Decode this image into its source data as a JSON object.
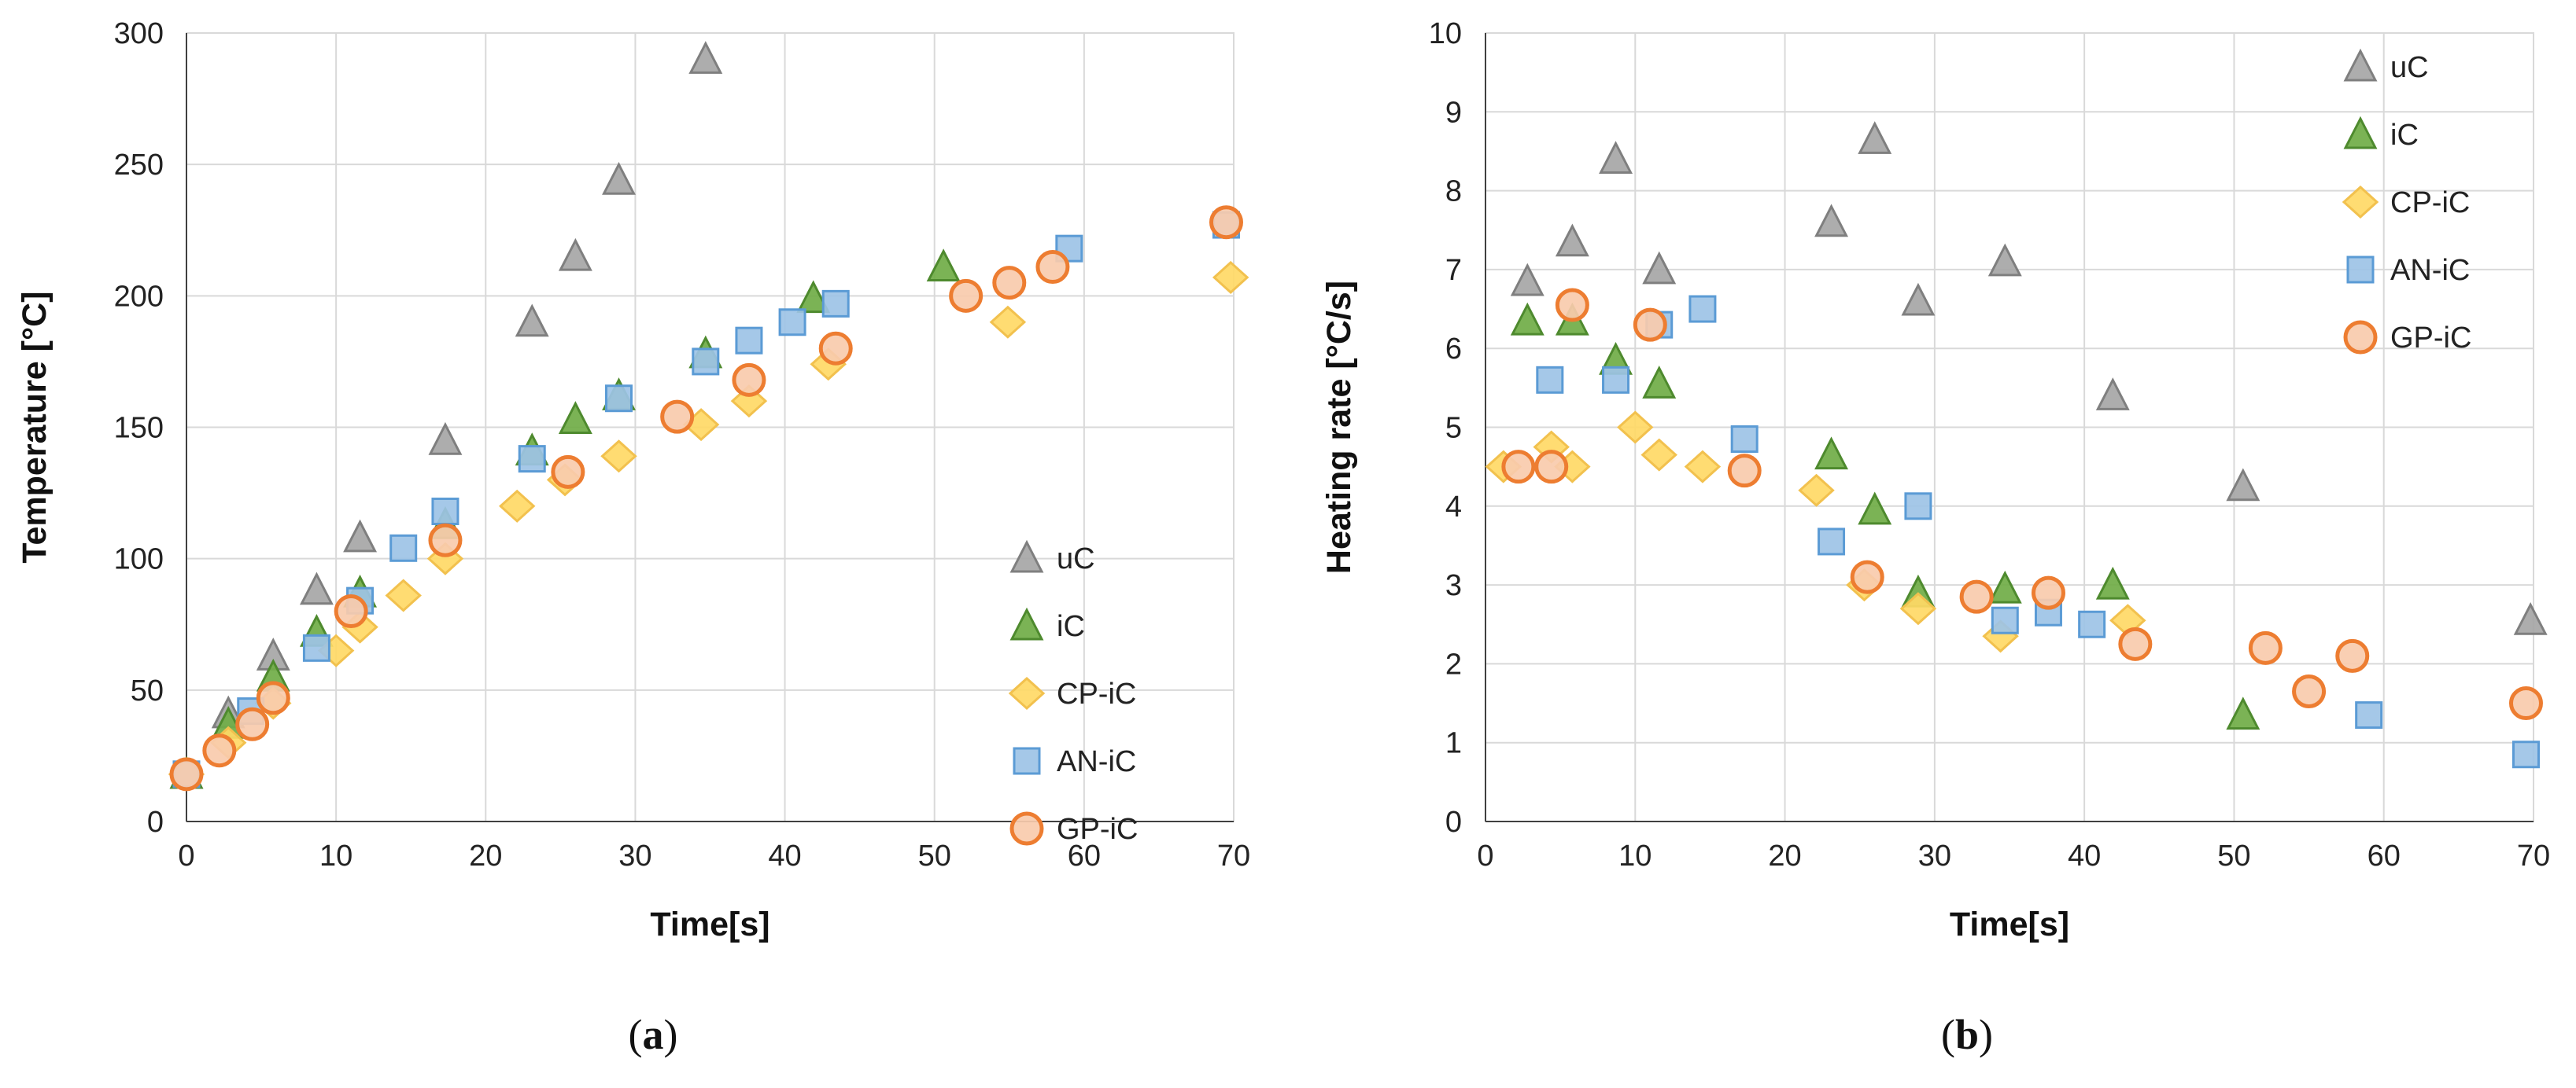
{
  "chart_data": [
    {
      "type": "scatter",
      "panel": "a",
      "caption_letter": "a",
      "xlabel": "Time[s]",
      "ylabel": "Temperature [°C]",
      "xlim": [
        0,
        70
      ],
      "ylim": [
        0,
        300
      ],
      "xticks": [
        0,
        10,
        20,
        30,
        40,
        50,
        60,
        70
      ],
      "yticks": [
        0,
        50,
        100,
        150,
        200,
        250,
        300
      ],
      "grid": true,
      "legend_position": "bottom-right",
      "series": [
        {
          "name": "uC",
          "marker": "triangle",
          "fill": "#a6a6a6",
          "stroke": "#7f7f7f",
          "x": [
            0,
            2.8,
            5.8,
            8.7,
            11.6,
            17.3,
            23.1,
            26,
            28.9,
            34.7
          ],
          "y": [
            18,
            41,
            63,
            88,
            108,
            145,
            190,
            215,
            244,
            290
          ]
        },
        {
          "name": "iC",
          "marker": "triangle",
          "fill": "#70ad47",
          "stroke": "#4e8a2e",
          "x": [
            0,
            2.8,
            5.8,
            8.7,
            11.6,
            17.3,
            23.1,
            26,
            28.9,
            34.7,
            41.9,
            50.6
          ],
          "y": [
            18,
            37,
            55,
            72,
            87,
            113,
            141,
            153,
            162,
            178,
            199,
            211
          ]
        },
        {
          "name": "CP-iC",
          "marker": "diamond",
          "fill": "#ffd966",
          "stroke": "#f2c14e",
          "x": [
            0,
            2.8,
            5.8,
            10,
            11.6,
            14.5,
            17.3,
            22.1,
            25.3,
            28.9,
            34.4,
            37.6,
            42.9,
            54.9,
            69.8
          ],
          "y": [
            18,
            30,
            45,
            65,
            74,
            86,
            100,
            120,
            130,
            139,
            151,
            160,
            174,
            190,
            207
          ]
        },
        {
          "name": "AN-iC",
          "marker": "square",
          "fill": "#9dc3e6",
          "stroke": "#5b9bd5",
          "x": [
            0,
            4.3,
            8.7,
            11.6,
            14.5,
            17.3,
            23.1,
            28.9,
            34.7,
            37.6,
            40.5,
            43.4,
            59,
            69.5
          ],
          "y": [
            18,
            42,
            66,
            84,
            104,
            118,
            138,
            161,
            175,
            183,
            190,
            197,
            218,
            227
          ]
        },
        {
          "name": "GP-iC",
          "marker": "circle",
          "fill": "#f8cbad",
          "stroke": "#ed7d31",
          "x": [
            0,
            2.2,
            4.4,
            5.8,
            11,
            17.3,
            25.5,
            32.8,
            37.6,
            43.4,
            52.1,
            55,
            57.9,
            69.5
          ],
          "y": [
            18,
            27,
            37,
            47,
            80,
            107,
            133,
            154,
            168,
            180,
            200,
            205,
            211,
            228
          ]
        }
      ]
    },
    {
      "type": "scatter",
      "panel": "b",
      "caption_letter": "b",
      "xlabel": "Time[s]",
      "ylabel": "Heating rate [°C/s]",
      "xlim": [
        0,
        70
      ],
      "ylim": [
        0,
        10
      ],
      "xticks": [
        0,
        10,
        20,
        30,
        40,
        50,
        60,
        70
      ],
      "yticks": [
        0,
        1,
        2,
        3,
        4,
        5,
        6,
        7,
        8,
        9,
        10
      ],
      "grid": true,
      "legend_position": "top-right",
      "series": [
        {
          "name": "uC",
          "marker": "triangle",
          "fill": "#a6a6a6",
          "stroke": "#7f7f7f",
          "x": [
            2.8,
            5.8,
            8.7,
            11.6,
            23.1,
            26,
            28.9,
            34.7,
            41.9,
            50.6,
            69.8
          ],
          "y": [
            6.85,
            7.35,
            8.4,
            7.0,
            7.6,
            8.65,
            6.6,
            7.1,
            5.4,
            4.25,
            2.55
          ]
        },
        {
          "name": "iC",
          "marker": "triangle",
          "fill": "#70ad47",
          "stroke": "#4e8a2e",
          "x": [
            2.8,
            5.8,
            8.7,
            11.6,
            23.1,
            26,
            28.9,
            34.7,
            41.9,
            50.6
          ],
          "y": [
            6.35,
            6.35,
            5.85,
            5.55,
            4.65,
            3.95,
            2.9,
            2.95,
            3.0,
            1.35
          ]
        },
        {
          "name": "CP-iC",
          "marker": "diamond",
          "fill": "#ffd966",
          "stroke": "#f2c14e",
          "x": [
            1.2,
            4.4,
            5.8,
            10,
            11.6,
            14.5,
            22.1,
            25.3,
            28.9,
            34.4,
            42.9
          ],
          "y": [
            4.5,
            4.75,
            4.5,
            5.0,
            4.65,
            4.5,
            4.2,
            3.0,
            2.7,
            2.35,
            2.55
          ]
        },
        {
          "name": "AN-iC",
          "marker": "square",
          "fill": "#9dc3e6",
          "stroke": "#5b9bd5",
          "x": [
            4.3,
            8.7,
            11.6,
            14.5,
            17.3,
            23.1,
            28.9,
            34.7,
            37.6,
            40.5,
            59,
            69.5
          ],
          "y": [
            5.6,
            5.6,
            6.3,
            6.5,
            4.85,
            3.55,
            4.0,
            2.55,
            2.65,
            2.5,
            1.35,
            0.85
          ]
        },
        {
          "name": "GP-iC",
          "marker": "circle",
          "fill": "#f8cbad",
          "stroke": "#ed7d31",
          "x": [
            2.2,
            4.4,
            5.8,
            11,
            17.3,
            25.5,
            32.8,
            37.6,
            43.4,
            52.1,
            55,
            57.9,
            69.5
          ],
          "y": [
            4.5,
            4.5,
            6.55,
            6.3,
            4.45,
            3.1,
            2.85,
            2.9,
            2.25,
            2.2,
            1.65,
            2.1,
            1.5
          ]
        }
      ]
    }
  ]
}
